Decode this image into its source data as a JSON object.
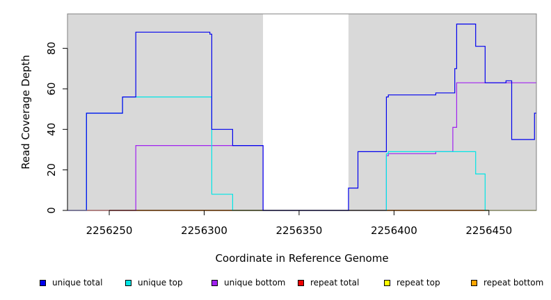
{
  "chart_data": {
    "type": "line",
    "title": "",
    "xlabel": "Coordinate in Reference Genome",
    "ylabel": "Read Coverage Depth",
    "xlim": [
      2256228,
      2256475
    ],
    "ylim": [
      0,
      97
    ],
    "x_ticks": [
      2256250,
      2256300,
      2256350,
      2256400,
      2256450
    ],
    "x_tick_labels": [
      "2256250",
      "2256300",
      "2256350",
      "2256400",
      "2256450"
    ],
    "y_ticks": [
      0,
      20,
      40,
      60,
      80
    ],
    "y_tick_labels": [
      "0",
      "20",
      "40",
      "60",
      "80"
    ],
    "grid": false,
    "step": true,
    "legend_position": "bottom",
    "shaded_regions": [
      {
        "x0": 2256228,
        "x1": 2256331,
        "color": "#d9d9d9"
      },
      {
        "x0": 2256376,
        "x1": 2256475,
        "color": "#d9d9d9"
      }
    ],
    "series": [
      {
        "name": "unique total",
        "color": "#0000ee",
        "x": [
          2256228,
          2256235,
          2256238,
          2256257,
          2256264,
          2256303,
          2256304,
          2256315,
          2256331,
          2256376,
          2256381,
          2256396,
          2256397,
          2256422,
          2256432,
          2256433,
          2256443,
          2256448,
          2256459,
          2256462,
          2256474,
          2256475
        ],
        "y": [
          0,
          0,
          48,
          56,
          88,
          87,
          40,
          32,
          0,
          11,
          29,
          56,
          57,
          58,
          70,
          92,
          81,
          63,
          64,
          35,
          48,
          48
        ]
      },
      {
        "name": "unique top",
        "color": "#00e5e5",
        "x": [
          2256228,
          2256235,
          2256238,
          2256257,
          2256264,
          2256304,
          2256315,
          2256331,
          2256376,
          2256396,
          2256397,
          2256443,
          2256448,
          2256475
        ],
        "y": [
          0,
          0,
          48,
          56,
          56,
          8,
          0,
          0,
          0,
          28,
          29,
          18,
          0,
          0
        ]
      },
      {
        "name": "unique bottom",
        "color": "#a020f0",
        "x": [
          2256228,
          2256264,
          2256331,
          2256376,
          2256396,
          2256397,
          2256422,
          2256431,
          2256433,
          2256448,
          2256475
        ],
        "y": [
          0,
          32,
          0,
          0,
          27,
          28,
          29,
          41,
          63,
          63,
          63
        ]
      },
      {
        "name": "repeat total",
        "color": "#ee0000",
        "x": [
          2256228,
          2256475
        ],
        "y": [
          0,
          0
        ]
      },
      {
        "name": "repeat top",
        "color": "#ffff00",
        "x": [
          2256228,
          2256475
        ],
        "y": [
          0,
          0
        ]
      },
      {
        "name": "repeat bottom",
        "color": "#ffa500",
        "x": [
          2256228,
          2256475
        ],
        "y": [
          0,
          0
        ]
      }
    ]
  }
}
